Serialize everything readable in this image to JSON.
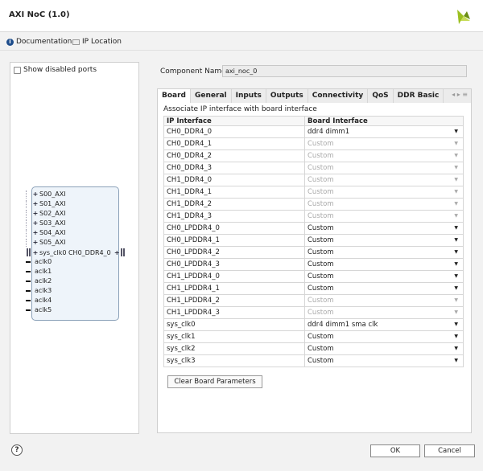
{
  "window": {
    "title": "AXI NoC (1.0)"
  },
  "toolbar": {
    "documentation": "Documentation",
    "ip_location": "IP Location"
  },
  "left": {
    "show_disabled_ports": "Show disabled ports",
    "left_ports": [
      "S00_AXI",
      "S01_AXI",
      "S02_AXI",
      "S03_AXI",
      "S04_AXI",
      "S05_AXI"
    ],
    "sys_clk": "sys_clk0",
    "right_port": "CH0_DDR4_0",
    "clocks": [
      "aclk0",
      "aclk1",
      "aclk2",
      "aclk3",
      "aclk4",
      "aclk5"
    ]
  },
  "component": {
    "label": "Component Name",
    "value": "axi_noc_0"
  },
  "tabs": [
    "Board",
    "General",
    "Inputs",
    "Outputs",
    "Connectivity",
    "QoS",
    "DDR Basic"
  ],
  "board": {
    "heading": "Associate IP interface with board interface",
    "columns": [
      "IP Interface",
      "Board Interface"
    ],
    "rows": [
      {
        "ip": "CH0_DDR4_0",
        "board": "ddr4 dimm1",
        "disabled": false
      },
      {
        "ip": "CH0_DDR4_1",
        "board": "Custom",
        "disabled": true
      },
      {
        "ip": "CH0_DDR4_2",
        "board": "Custom",
        "disabled": true
      },
      {
        "ip": "CH0_DDR4_3",
        "board": "Custom",
        "disabled": true
      },
      {
        "ip": "CH1_DDR4_0",
        "board": "Custom",
        "disabled": true
      },
      {
        "ip": "CH1_DDR4_1",
        "board": "Custom",
        "disabled": true
      },
      {
        "ip": "CH1_DDR4_2",
        "board": "Custom",
        "disabled": true
      },
      {
        "ip": "CH1_DDR4_3",
        "board": "Custom",
        "disabled": true
      },
      {
        "ip": "CH0_LPDDR4_0",
        "board": "Custom",
        "disabled": false
      },
      {
        "ip": "CH0_LPDDR4_1",
        "board": "Custom",
        "disabled": false
      },
      {
        "ip": "CH0_LPDDR4_2",
        "board": "Custom",
        "disabled": false
      },
      {
        "ip": "CH0_LPDDR4_3",
        "board": "Custom",
        "disabled": false
      },
      {
        "ip": "CH1_LPDDR4_0",
        "board": "Custom",
        "disabled": false
      },
      {
        "ip": "CH1_LPDDR4_1",
        "board": "Custom",
        "disabled": false
      },
      {
        "ip": "CH1_LPDDR4_2",
        "board": "Custom",
        "disabled": true
      },
      {
        "ip": "CH1_LPDDR4_3",
        "board": "Custom",
        "disabled": true
      },
      {
        "ip": "sys_clk0",
        "board": "ddr4 dimm1 sma clk",
        "disabled": false
      },
      {
        "ip": "sys_clk1",
        "board": "Custom",
        "disabled": false
      },
      {
        "ip": "sys_clk2",
        "board": "Custom",
        "disabled": false
      },
      {
        "ip": "sys_clk3",
        "board": "Custom",
        "disabled": false
      }
    ],
    "clear_button": "Clear Board Parameters"
  },
  "footer": {
    "help": "?",
    "ok": "OK",
    "cancel": "Cancel"
  }
}
